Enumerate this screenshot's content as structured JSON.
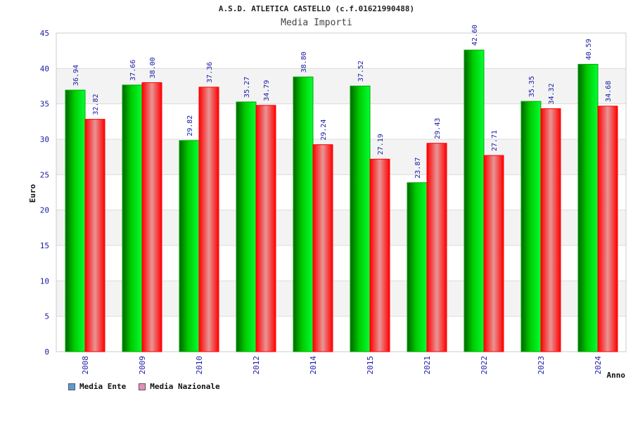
{
  "chart_data": {
    "type": "bar",
    "title": "A.S.D. ATLETICA CASTELLO (c.f.01621990488)",
    "subtitle": "Media Importi",
    "xlabel": "Anno",
    "ylabel": "Euro",
    "ylim": [
      0,
      45
    ],
    "yticks": [
      0,
      5,
      10,
      15,
      20,
      25,
      30,
      35,
      40,
      45
    ],
    "grid": true,
    "legend_position": "bottom-left",
    "categories": [
      "2008",
      "2009",
      "2010",
      "2012",
      "2014",
      "2015",
      "2021",
      "2022",
      "2023",
      "2024"
    ],
    "series": [
      {
        "name": "Media Ente",
        "color": "#00aa00",
        "legend_color": "#5b9bd5",
        "values": [
          36.94,
          37.66,
          29.82,
          35.27,
          38.8,
          37.52,
          23.87,
          42.6,
          35.35,
          40.59
        ],
        "labels": [
          "36.94",
          "37.66",
          "29.82",
          "35.27",
          "38.80",
          "37.52",
          "23.87",
          "42.60",
          "35.35",
          "40.59"
        ]
      },
      {
        "name": "Media Nazionale",
        "color": "#ff0000",
        "legend_color": "#e58fb5",
        "values": [
          32.82,
          38.0,
          37.36,
          34.79,
          29.24,
          27.19,
          29.43,
          27.71,
          34.32,
          34.68
        ],
        "labels": [
          "32.82",
          "38.00",
          "37.36",
          "34.79",
          "29.24",
          "27.19",
          "29.43",
          "27.71",
          "34.32",
          "34.68"
        ]
      }
    ]
  }
}
